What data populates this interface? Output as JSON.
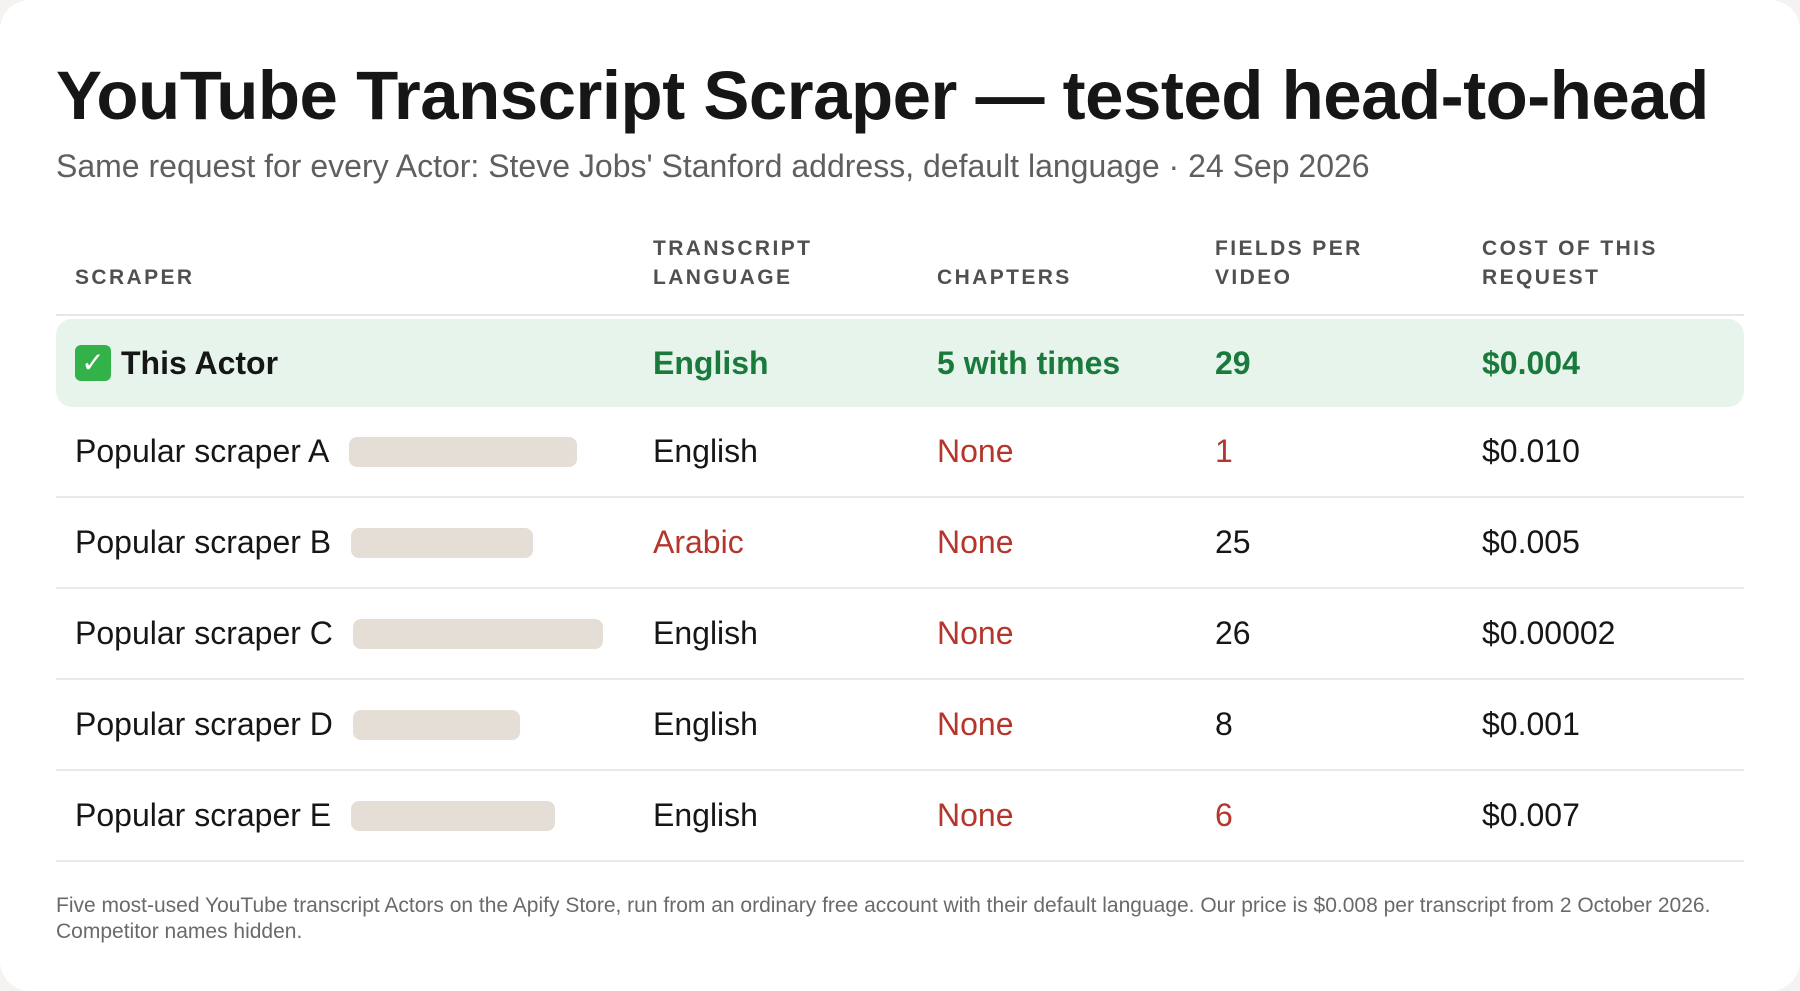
{
  "title": "YouTube Transcript Scraper — tested head-to-head",
  "subtitle": "Same request for every Actor: Steve Jobs' Stanford address, default language · 24 Sep 2026",
  "columns": {
    "scraper": "SCRAPER",
    "language": "TRANSCRIPT\nLANGUAGE",
    "chapters": "CHAPTERS",
    "fields": "FIELDS PER\nVIDEO",
    "cost": "COST OF THIS\nREQUEST"
  },
  "highlight_row": {
    "icon": "check-mark-icon",
    "icon_glyph": "✓",
    "scraper": "This Actor",
    "language": "English",
    "chapters": "5 with times",
    "fields": "29",
    "cost": "$0.004"
  },
  "rows": [
    {
      "scraper": "Popular scraper A",
      "language": "English",
      "chapters": "None",
      "fields": "1",
      "cost": "$0.010"
    },
    {
      "scraper": "Popular scraper B",
      "language": "Arabic",
      "chapters": "None",
      "fields": "25",
      "cost": "$0.005"
    },
    {
      "scraper": "Popular scraper C",
      "language": "English",
      "chapters": "None",
      "fields": "26",
      "cost": "$0.00002"
    },
    {
      "scraper": "Popular scraper D",
      "language": "English",
      "chapters": "None",
      "fields": "8",
      "cost": "$0.001"
    },
    {
      "scraper": "Popular scraper E",
      "language": "English",
      "chapters": "None",
      "fields": "6",
      "cost": "$0.007"
    }
  ],
  "footnote": "Five most-used YouTube transcript Actors on the Apify Store, run from an ordinary free account with their default language. Our price is $0.008 per transcript from 2 October 2026. Competitor names hidden.",
  "colors": {
    "good": "#197a3b",
    "bad": "#b4362c",
    "highlight_bg": "#e7f4eb",
    "redaction": "#e4ded7"
  }
}
